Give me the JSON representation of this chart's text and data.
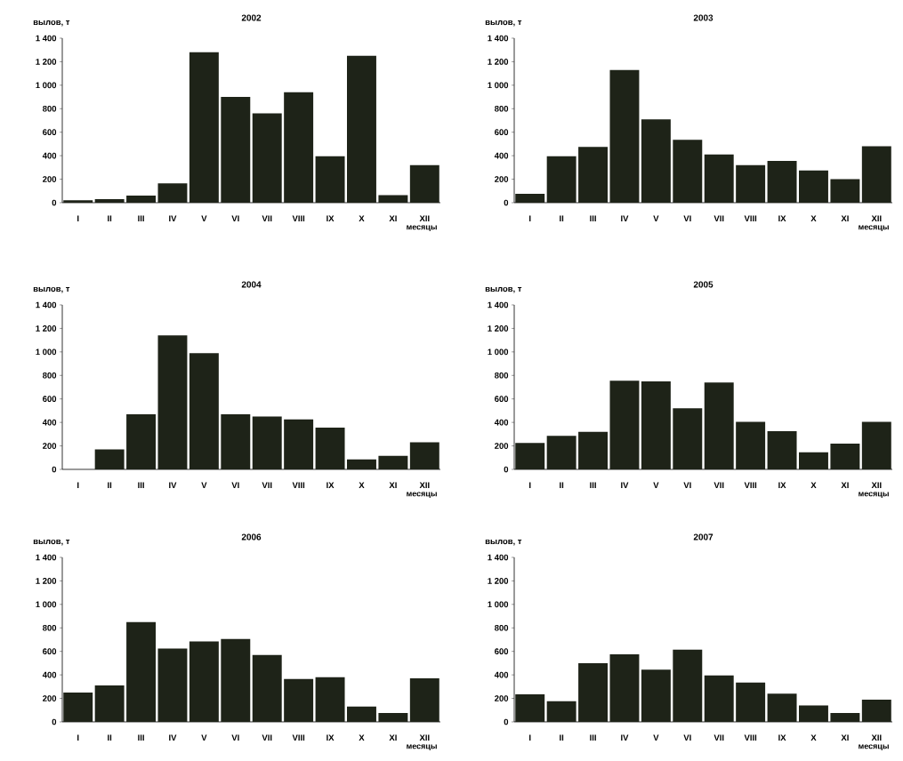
{
  "chart_data": [
    {
      "type": "bar",
      "title": "2002",
      "ylabel": "вылов, т",
      "xlabel": "месяцы",
      "color": "#1e2318",
      "categories": [
        "I",
        "II",
        "III",
        "IV",
        "V",
        "VI",
        "VII",
        "VIII",
        "IX",
        "X",
        "XI",
        "XII"
      ],
      "values": [
        20,
        30,
        60,
        165,
        1280,
        900,
        760,
        940,
        395,
        1250,
        65,
        320
      ],
      "ylim": [
        0,
        1400
      ],
      "yticks": [
        0,
        200,
        400,
        600,
        800,
        {
          "value": 1000,
          "label": "1 000"
        },
        {
          "value": 1200,
          "label": "1 200"
        },
        {
          "value": 1400,
          "label": "1 400"
        }
      ]
    },
    {
      "type": "bar",
      "title": "2003",
      "ylabel": "вылов, т",
      "xlabel": "месяцы",
      "color": "#1e2318",
      "categories": [
        "I",
        "II",
        "III",
        "IV",
        "V",
        "VI",
        "VII",
        "VIII",
        "IX",
        "X",
        "XI",
        "XII"
      ],
      "values": [
        75,
        395,
        475,
        1130,
        710,
        535,
        410,
        320,
        355,
        275,
        200,
        480
      ],
      "ylim": [
        0,
        1400
      ],
      "yticks": [
        0,
        200,
        400,
        600,
        800,
        {
          "value": 1000,
          "label": "1 000"
        },
        {
          "value": 1200,
          "label": "1 200"
        },
        {
          "value": 1400,
          "label": "1 400"
        }
      ]
    },
    {
      "type": "bar",
      "title": "2004",
      "ylabel": "вылов, т",
      "xlabel": "месяцы",
      "color": "#1e2318",
      "categories": [
        "I",
        "II",
        "III",
        "IV",
        "V",
        "VI",
        "VII",
        "VIII",
        "IX",
        "X",
        "XI",
        "XII"
      ],
      "values": [
        0,
        170,
        470,
        1140,
        990,
        470,
        450,
        425,
        355,
        85,
        115,
        230
      ],
      "ylim": [
        0,
        1400
      ],
      "yticks": [
        0,
        200,
        400,
        600,
        800,
        {
          "value": 1000,
          "label": "1 000"
        },
        {
          "value": 1200,
          "label": "1 200"
        },
        {
          "value": 1400,
          "label": "1 400"
        }
      ]
    },
    {
      "type": "bar",
      "title": "2005",
      "ylabel": "вылов, т",
      "xlabel": "месяцы",
      "color": "#1e2318",
      "categories": [
        "I",
        "II",
        "III",
        "IV",
        "V",
        "VI",
        "VII",
        "VIII",
        "IX",
        "X",
        "XI",
        "XII"
      ],
      "values": [
        225,
        285,
        320,
        755,
        750,
        520,
        740,
        405,
        325,
        145,
        220,
        405
      ],
      "ylim": [
        0,
        1400
      ],
      "yticks": [
        0,
        200,
        400,
        600,
        800,
        {
          "value": 1000,
          "label": "1 000"
        },
        {
          "value": 1200,
          "label": "1 200"
        },
        {
          "value": 1400,
          "label": "1 400"
        }
      ]
    },
    {
      "type": "bar",
      "title": "2006",
      "ylabel": "вылов, т",
      "xlabel": "месяцы",
      "color": "#1e2318",
      "categories": [
        "I",
        "II",
        "III",
        "IV",
        "V",
        "VI",
        "VII",
        "VIII",
        "IX",
        "X",
        "XI",
        "XII"
      ],
      "values": [
        250,
        310,
        850,
        625,
        685,
        705,
        570,
        365,
        380,
        130,
        75,
        370
      ],
      "ylim": [
        0,
        1400
      ],
      "yticks": [
        0,
        200,
        400,
        600,
        800,
        {
          "value": 1000,
          "label": "1 000"
        },
        {
          "value": 1200,
          "label": "1 200"
        },
        {
          "value": 1400,
          "label": "1 400"
        }
      ]
    },
    {
      "type": "bar",
      "title": "2007",
      "ylabel": "вылов, т",
      "xlabel": "месяцы",
      "color": "#1e2318",
      "categories": [
        "I",
        "II",
        "III",
        "IV",
        "V",
        "VI",
        "VII",
        "VIII",
        "IX",
        "X",
        "XI",
        "XII"
      ],
      "values": [
        235,
        175,
        500,
        575,
        445,
        615,
        395,
        335,
        240,
        140,
        75,
        190
      ],
      "ylim": [
        0,
        1400
      ],
      "yticks": [
        0,
        200,
        400,
        600,
        800,
        {
          "value": 1000,
          "label": "1 000"
        },
        {
          "value": 1200,
          "label": "1 200"
        },
        {
          "value": 1400,
          "label": "1 400"
        }
      ]
    }
  ]
}
